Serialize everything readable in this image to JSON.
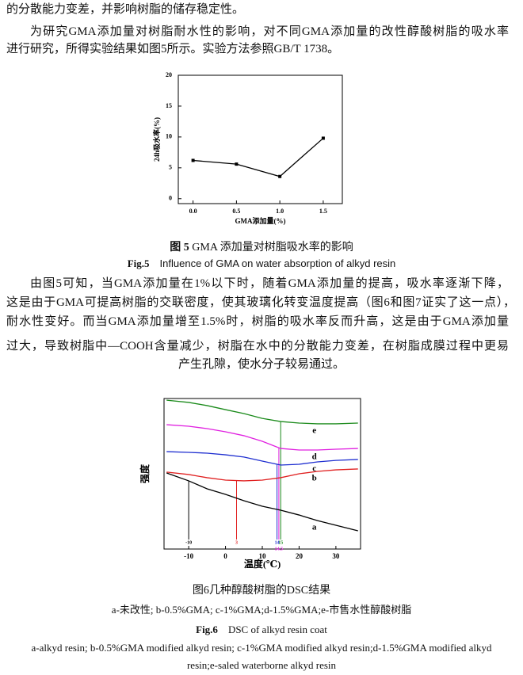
{
  "text": {
    "p1": [
      "的分散能力变差，并影响树脂的储存稳定性。"
    ],
    "p2": [
      "为研究GMA添加量对树脂耐水性的影响，对不同GMA添加量的改性醇酸树脂的吸水率",
      "进行研究，所得实验结果如图5所示。实验方法参照GB/T 1738。"
    ],
    "fig5_caption_cn": {
      "label": "图 5",
      "text": "GMA 添加量对树脂吸水率的影响"
    },
    "fig5_caption_en": {
      "label": "Fig.5",
      "text": "Influence of GMA on water absorption of alkyd resin"
    },
    "p3": [
      "由图5可知，当GMA添加量在1%以下时，随着GMA添加量的提高，吸水率逐渐下降，",
      "这是由于GMA可提高树脂的交联密度，使其玻璃化转变温度提高（图6和图7证实了这一点），",
      "耐水性变好。而当GMA添加量增至1.5%时，树脂的吸水率反而升高，这是由于GMA添加量",
      "过大，导致树脂中—COOH含量减少，树脂在水中的分散能力变差，在树脂成膜过程中更易",
      "产生孔隙，使水分子较易通过。"
    ],
    "fig6_caption_cn": "图6几种醇酸树脂的DSC结果",
    "fig6_note_cn": "a-未改性; b-0.5%GMA; c-1%GMA;d-1.5%GMA;e-市售水性醇酸树脂",
    "fig6_caption_en": {
      "label": "Fig.6",
      "text": "DSC of alkyd resin coat"
    },
    "fig6_note_en": [
      "a-alkyd resin; b-0.5%GMA modified alkyd resin; c-1%GMA modified alkyd resin;d-1.5%GMA modified alkyd",
      "resin;e-saled waterborne alkyd resin"
    ]
  },
  "chart_data": [
    {
      "type": "line",
      "xlabel": "GMA添加量(%)",
      "ylabel": "24h吸水率(%)",
      "x": [
        0,
        0.5,
        1,
        1.5
      ],
      "values": [
        6.2,
        5.6,
        3.6,
        9.8
      ],
      "color": "#000000",
      "marker": "square",
      "xlim": [
        -0.17,
        1.72
      ],
      "xticks": [
        {
          "value": 0,
          "label": "0.0"
        },
        0.5,
        {
          "value": 1,
          "label": "1.0"
        },
        1.5
      ],
      "ylim": [
        -0.8,
        20
      ],
      "yticks": [
        0,
        5,
        10,
        15,
        20
      ]
    },
    {
      "type": "line",
      "xlabel": "温度(℃)",
      "ylabel": "强度",
      "x": [
        -16,
        -10,
        -5,
        0,
        5,
        10,
        15,
        20,
        25,
        30,
        36
      ],
      "xlim": [
        -16.7,
        36.7
      ],
      "xticks": [
        -10,
        0,
        10,
        20,
        30
      ],
      "ylim": [
        0,
        100
      ],
      "series": [
        {
          "name": "e",
          "color": "#1a8a1a",
          "tg": 15,
          "values": [
            98.9,
            97.4,
            95.3,
            92.6,
            90,
            86.8,
            84.7,
            83.7,
            83.2,
            83.2,
            83.7
          ]
        },
        {
          "name": "d",
          "color": "#e020e0",
          "tg": 14.5,
          "values": [
            82.6,
            81.6,
            80,
            77.9,
            75.3,
            71.6,
            66.8,
            65.8,
            65.8,
            66.3,
            66.8
          ]
        },
        {
          "name": "c",
          "color": "#1f2fd0",
          "tg": 14,
          "values": [
            64.7,
            64.2,
            63.7,
            62.6,
            61.1,
            58.4,
            55.8,
            56.3,
            57.9,
            58.9,
            59.5
          ]
        },
        {
          "name": "b",
          "color": "#e02020",
          "tg": 3,
          "values": [
            51.1,
            49.5,
            47.4,
            45.8,
            45.3,
            45.8,
            47.4,
            50,
            51.6,
            52.6,
            53.2
          ]
        },
        {
          "name": "a",
          "color": "#000000",
          "tg": -10,
          "values": [
            50.5,
            45.3,
            40,
            36.3,
            32.1,
            28.4,
            25.8,
            22.6,
            18.9,
            15.8,
            12.1
          ]
        }
      ]
    }
  ]
}
